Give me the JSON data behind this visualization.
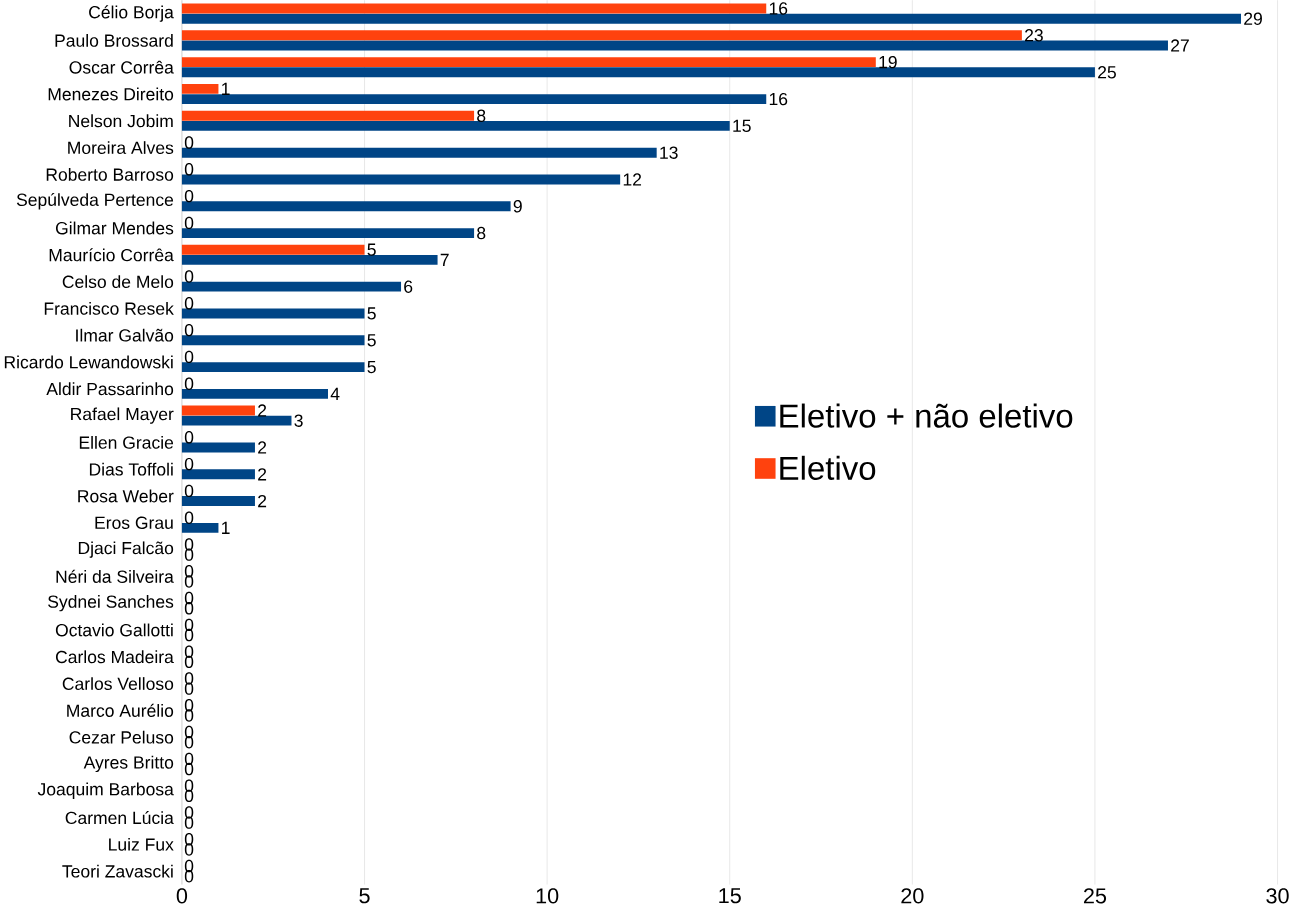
{
  "chart_data": {
    "type": "bar",
    "orientation": "horizontal",
    "categories": [
      "Célio Borja",
      "Paulo Brossard",
      "Oscar Corrêa",
      "Menezes Direito",
      "Nelson Jobim",
      "Moreira Alves",
      "Roberto Barroso",
      "Sepúlveda Pertence",
      "Gilmar Mendes",
      "Maurício Corrêa",
      "Celso de Melo",
      "Francisco Resek",
      "Ilmar Galvão",
      "Ricardo Lewandowski",
      "Aldir Passarinho",
      "Rafael Mayer",
      "Ellen Gracie",
      "Dias Toffoli",
      "Rosa Weber",
      "Eros Grau",
      "Djaci Falcão",
      "Néri da Silveira",
      "Sydnei Sanches",
      "Octavio Gallotti",
      "Carlos Madeira",
      "Carlos Velloso",
      "Marco Aurélio",
      "Cezar Peluso",
      "Ayres Britto",
      "Joaquim Barbosa",
      "Carmen Lúcia",
      "Luiz Fux",
      "Teori Zavascki"
    ],
    "series": [
      {
        "name": "Eletivo + não eletivo",
        "color": "#004586",
        "values": [
          29,
          27,
          25,
          16,
          15,
          13,
          12,
          9,
          8,
          7,
          6,
          5,
          5,
          5,
          4,
          3,
          2,
          2,
          2,
          1,
          0,
          0,
          0,
          0,
          0,
          0,
          0,
          0,
          0,
          0,
          0,
          0,
          0
        ]
      },
      {
        "name": "Eletivo",
        "color": "#ff420e",
        "values": [
          16,
          23,
          19,
          1,
          8,
          0,
          0,
          0,
          0,
          5,
          0,
          0,
          0,
          0,
          0,
          2,
          0,
          0,
          0,
          0,
          0,
          0,
          0,
          0,
          0,
          0,
          0,
          0,
          0,
          0,
          0,
          0,
          0
        ]
      }
    ],
    "xlim": [
      0,
      30
    ],
    "xticks": [
      0,
      5,
      10,
      15,
      20,
      25,
      30
    ],
    "grid": "x",
    "legend": "right",
    "data_labels": true
  }
}
